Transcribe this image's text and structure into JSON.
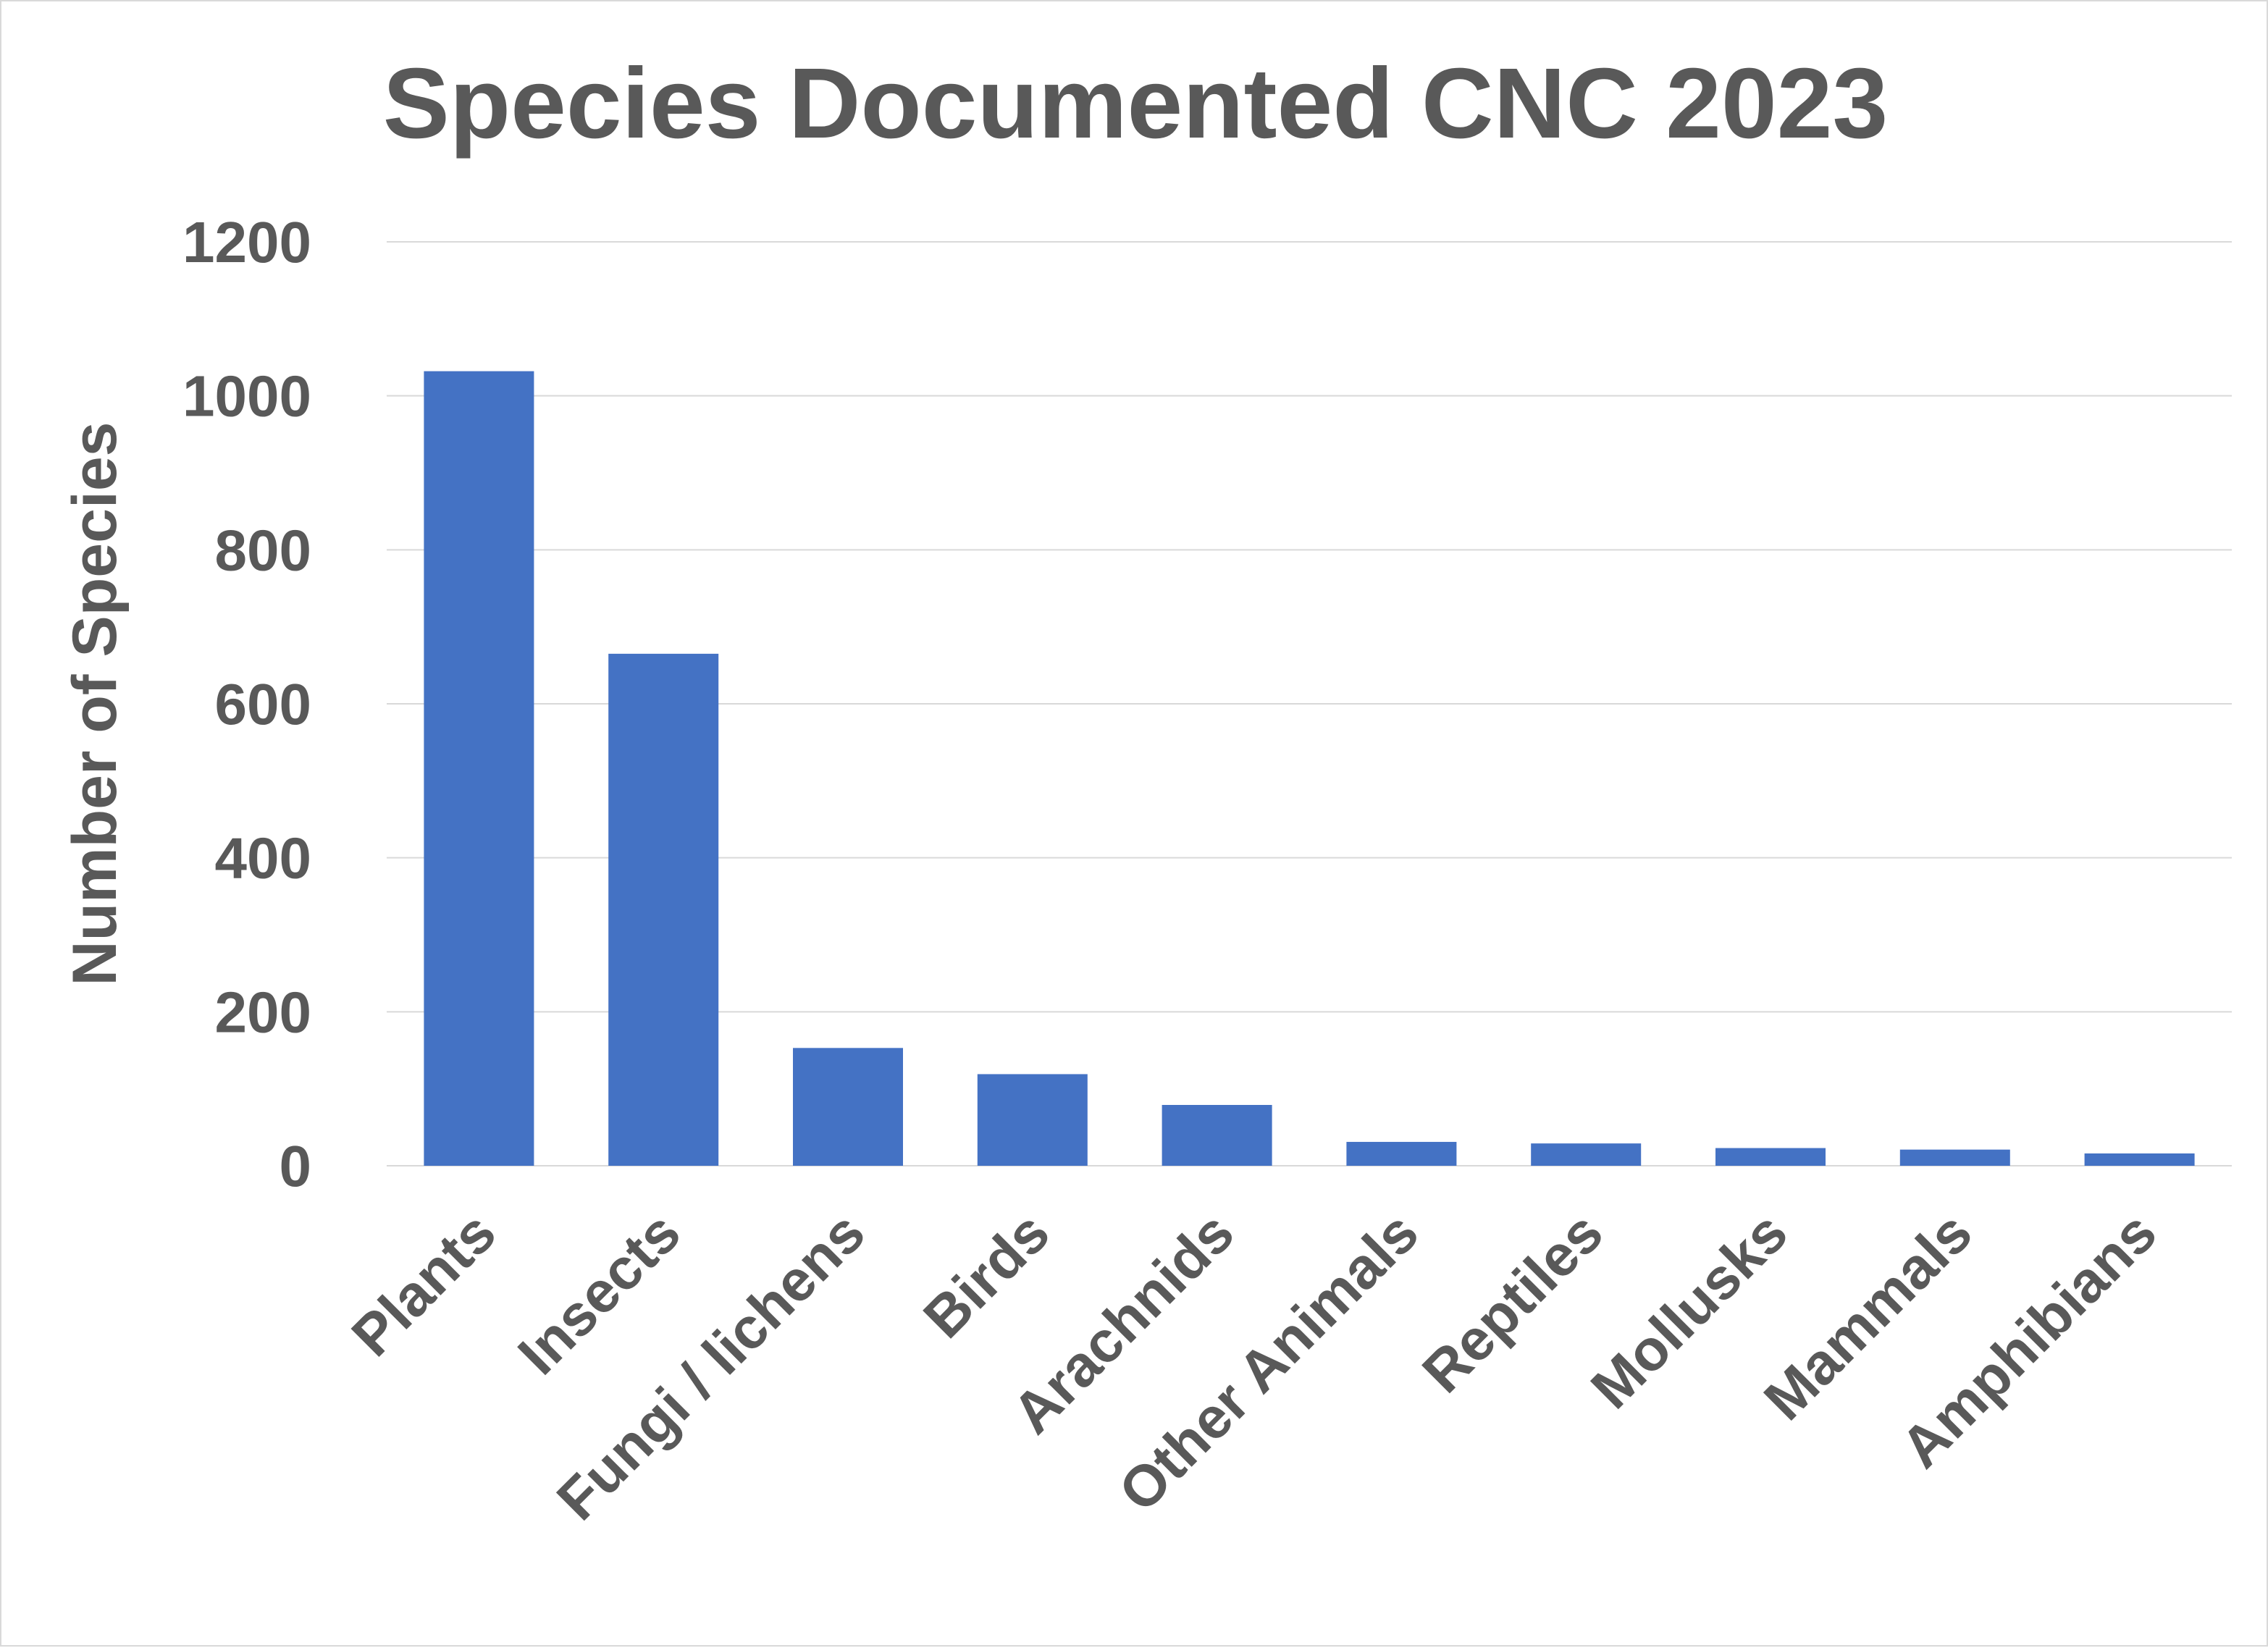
{
  "chart_data": {
    "type": "bar",
    "title": "Species Documented CNC 2023",
    "xlabel": "",
    "ylabel": "Number of Species",
    "categories": [
      "Plants",
      "Insects",
      "Fungi / lichens",
      "Birds",
      "Arachnids",
      "Other Animals",
      "Reptiles",
      "Mollusks",
      "Mammals",
      "Amphibians"
    ],
    "values": [
      1032,
      665,
      153,
      119,
      79,
      31,
      29,
      23,
      21,
      16
    ],
    "ylim": [
      0,
      1200
    ],
    "yticks": [
      "0",
      "200",
      "400",
      "600",
      "800",
      "1000",
      "1200"
    ],
    "grid": true,
    "legend": "none",
    "bar_color": "#4472c4",
    "text_color": "#595959",
    "grid_color": "#d9d9d9"
  }
}
